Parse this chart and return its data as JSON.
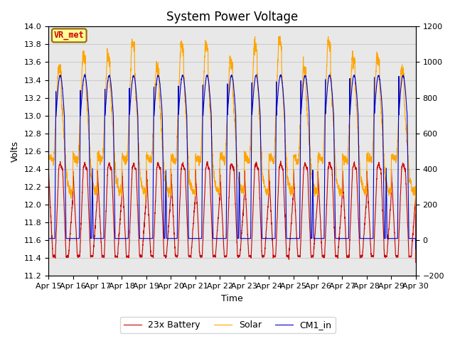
{
  "title": "System Power Voltage",
  "xlabel": "Time",
  "ylabel": "Volts",
  "left_ylim": [
    11.2,
    14.0
  ],
  "right_ylim": [
    -200,
    1200
  ],
  "left_yticks": [
    11.2,
    11.4,
    11.6,
    11.8,
    12.0,
    12.2,
    12.4,
    12.6,
    12.8,
    13.0,
    13.2,
    13.4,
    13.6,
    13.8,
    14.0
  ],
  "right_yticks": [
    -200,
    0,
    200,
    400,
    600,
    800,
    1000,
    1200
  ],
  "xtick_labels": [
    "Apr 15",
    "Apr 16",
    "Apr 17",
    "Apr 18",
    "Apr 19",
    "Apr 20",
    "Apr 21",
    "Apr 22",
    "Apr 23",
    "Apr 24",
    "Apr 25",
    "Apr 26",
    "Apr 27",
    "Apr 28",
    "Apr 29",
    "Apr 30"
  ],
  "battery_color": "#cc0000",
  "solar_color": "#ffa500",
  "cm1_color": "#0000cc",
  "legend_labels": [
    "23x Battery",
    "Solar",
    "CM1_in"
  ],
  "annotation_text": "VR_met",
  "annotation_color": "#cc0000",
  "annotation_bg": "#ffff99",
  "annotation_border": "#996600",
  "grid_color": "#cccccc",
  "bg_color": "#e8e8e8",
  "title_fontsize": 12,
  "axis_fontsize": 9,
  "tick_fontsize": 8,
  "legend_fontsize": 9
}
